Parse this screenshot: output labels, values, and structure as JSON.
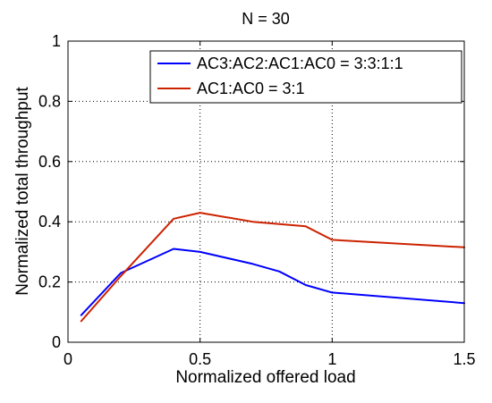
{
  "chart_data": {
    "type": "line",
    "title": "N = 30",
    "xlabel": "Normalized offered load",
    "ylabel": "Normalized total throughput",
    "xlim": [
      0,
      1.5
    ],
    "ylim": [
      0,
      1
    ],
    "xticks": [
      "0",
      "0.5",
      "1",
      "1.5"
    ],
    "xtick_values": [
      0,
      0.5,
      1,
      1.5
    ],
    "yticks": [
      "0",
      "0.2",
      "0.4",
      "0.6",
      "0.8",
      "1"
    ],
    "ytick_values": [
      0,
      0.2,
      0.4,
      0.6,
      0.8,
      1
    ],
    "grid": "dotted vertical at x = 0.5, 1 and horizontal at y = 0.2, 0.4, 0.6",
    "legend_position": "top-right",
    "series": [
      {
        "name": "AC3:AC2:AC1:AC0 = 3:3:1:1",
        "color": "#0000ff",
        "x": [
          0.05,
          0.2,
          0.4,
          0.5,
          0.7,
          0.8,
          0.9,
          1.0,
          1.5
        ],
        "y": [
          0.09,
          0.23,
          0.31,
          0.3,
          0.26,
          0.235,
          0.19,
          0.165,
          0.13
        ]
      },
      {
        "name": "AC1:AC0 = 3:1",
        "color": "#cc2200",
        "x": [
          0.05,
          0.2,
          0.4,
          0.5,
          0.7,
          0.9,
          1.0,
          1.5
        ],
        "y": [
          0.07,
          0.22,
          0.41,
          0.43,
          0.4,
          0.385,
          0.34,
          0.315
        ]
      }
    ]
  }
}
